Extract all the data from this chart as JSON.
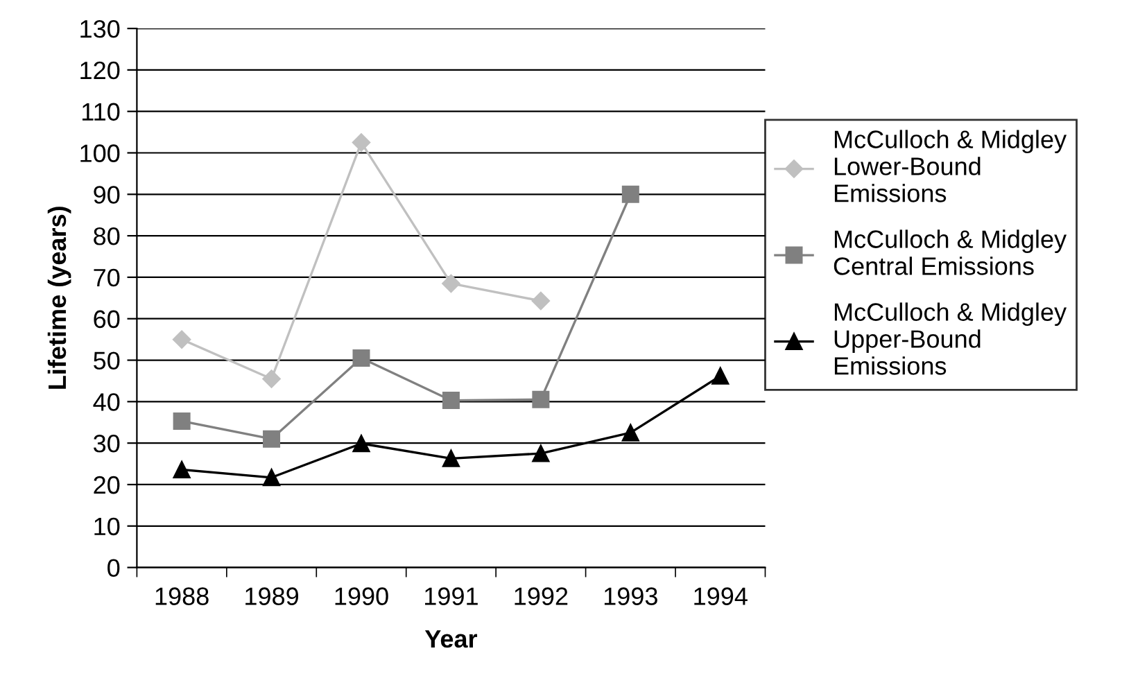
{
  "chart_data": {
    "type": "line",
    "xlabel": "Year",
    "ylabel": "Lifetime (years)",
    "categories": [
      "1988",
      "1989",
      "1990",
      "1991",
      "1992",
      "1993",
      "1994"
    ],
    "series": [
      {
        "name": "McCulloch & Midgley\nLower-Bound\nEmissions",
        "color": "#c0c0c0",
        "marker": "diamond",
        "values": [
          55,
          45.5,
          102.5,
          68.5,
          64.3,
          null,
          null
        ]
      },
      {
        "name": "McCulloch & Midgley\nCentral Emissions",
        "color": "#808080",
        "marker": "square",
        "values": [
          35.3,
          31,
          50.5,
          40.3,
          40.5,
          90,
          null
        ]
      },
      {
        "name": "McCulloch & Midgley\nUpper-Bound\nEmissions",
        "color": "#000000",
        "marker": "triangle",
        "values": [
          23.6,
          21.7,
          29.9,
          26.3,
          27.5,
          32.5,
          46.2
        ]
      }
    ],
    "ylim": [
      0,
      130
    ],
    "yticks": [
      0,
      10,
      20,
      30,
      40,
      50,
      60,
      70,
      80,
      90,
      100,
      110,
      120,
      130
    ],
    "grid": "y",
    "legend": "right"
  }
}
